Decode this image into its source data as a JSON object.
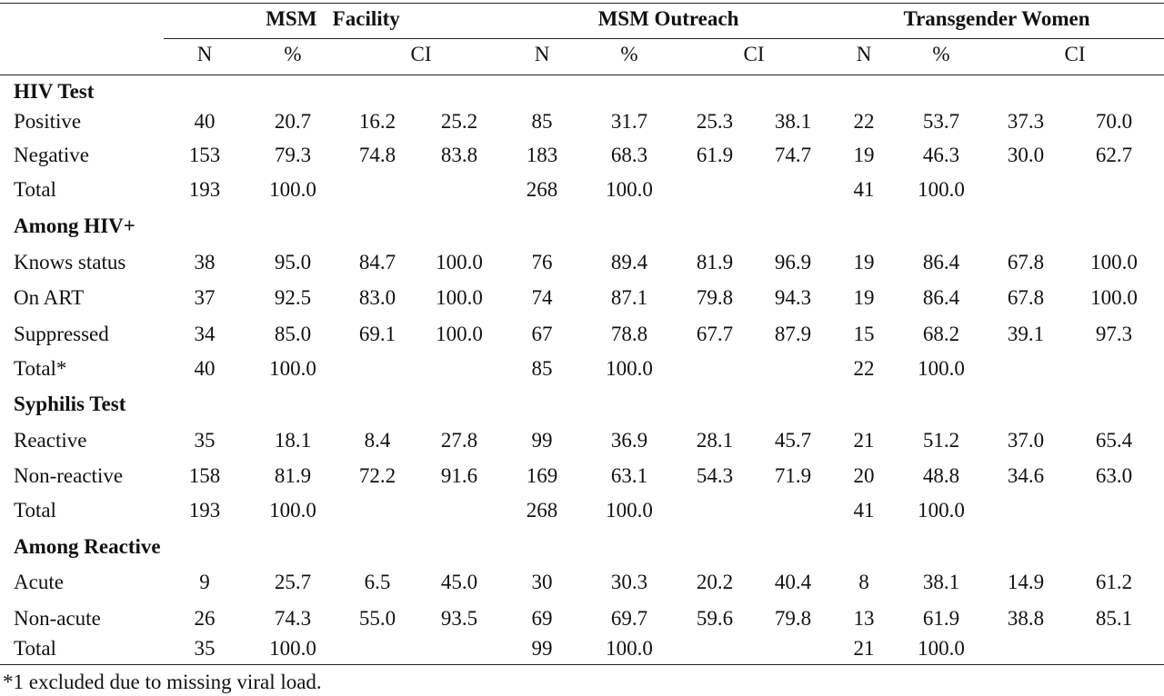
{
  "groups": [
    "MSM   Facility",
    "MSM Outreach",
    "Transgender Women"
  ],
  "subheaders": [
    "N",
    "%",
    "CI",
    "N",
    "%",
    "CI",
    "N",
    "%",
    "CI"
  ],
  "sections": [
    {
      "title": "HIV Test",
      "rows": [
        {
          "label": "Positive",
          "values": [
            "40",
            "20.7",
            "16.2",
            "25.2",
            "85",
            "31.7",
            "25.3",
            "38.1",
            "22",
            "53.7",
            "37.3",
            "70.0"
          ]
        },
        {
          "label": "Negative",
          "values": [
            "153",
            "79.3",
            "74.8",
            "83.8",
            "183",
            "68.3",
            "61.9",
            "74.7",
            "19",
            "46.3",
            "30.0",
            "62.7"
          ]
        },
        {
          "label": "Total",
          "values": [
            "193",
            "100.0",
            "",
            "",
            "268",
            "100.0",
            "",
            "",
            "41",
            "100.0",
            "",
            ""
          ]
        }
      ]
    },
    {
      "title": "Among HIV+",
      "rows": [
        {
          "label": "Knows status",
          "values": [
            "38",
            "95.0",
            "84.7",
            "100.0",
            "76",
            "89.4",
            "81.9",
            "96.9",
            "19",
            "86.4",
            "67.8",
            "100.0"
          ]
        },
        {
          "label": "On ART",
          "values": [
            "37",
            "92.5",
            "83.0",
            "100.0",
            "74",
            "87.1",
            "79.8",
            "94.3",
            "19",
            "86.4",
            "67.8",
            "100.0"
          ]
        },
        {
          "label": "Suppressed",
          "values": [
            "34",
            "85.0",
            "69.1",
            "100.0",
            "67",
            "78.8",
            "67.7",
            "87.9",
            "15",
            "68.2",
            "39.1",
            "97.3"
          ]
        },
        {
          "label": "Total*",
          "values": [
            "40",
            "100.0",
            "",
            "",
            "85",
            "100.0",
            "",
            "",
            "22",
            "100.0",
            "",
            ""
          ]
        }
      ]
    },
    {
      "title": "Syphilis Test",
      "rows": [
        {
          "label": "Reactive",
          "values": [
            "35",
            "18.1",
            "8.4",
            "27.8",
            "99",
            "36.9",
            "28.1",
            "45.7",
            "21",
            "51.2",
            "37.0",
            "65.4"
          ]
        },
        {
          "label": "Non-reactive",
          "values": [
            "158",
            "81.9",
            "72.2",
            "91.6",
            "169",
            "63.1",
            "54.3",
            "71.9",
            "20",
            "48.8",
            "34.6",
            "63.0"
          ]
        },
        {
          "label": "Total",
          "values": [
            "193",
            "100.0",
            "",
            "",
            "268",
            "100.0",
            "",
            "",
            "41",
            "100.0",
            "",
            ""
          ]
        }
      ]
    },
    {
      "title": "Among Reactive",
      "rows": [
        {
          "label": "Acute",
          "values": [
            "9",
            "25.7",
            "6.5",
            "45.0",
            "30",
            "30.3",
            "20.2",
            "40.4",
            "8",
            "38.1",
            "14.9",
            "61.2"
          ]
        },
        {
          "label": "Non-acute",
          "values": [
            "26",
            "74.3",
            "55.0",
            "93.5",
            "69",
            "69.7",
            "59.6",
            "79.8",
            "13",
            "61.9",
            "38.8",
            "85.1"
          ]
        },
        {
          "label": "Total",
          "values": [
            "35",
            "100.0",
            "",
            "",
            "99",
            "100.0",
            "",
            "",
            "21",
            "100.0",
            "",
            ""
          ]
        }
      ]
    }
  ],
  "footnote": "*1 excluded due to missing viral load."
}
